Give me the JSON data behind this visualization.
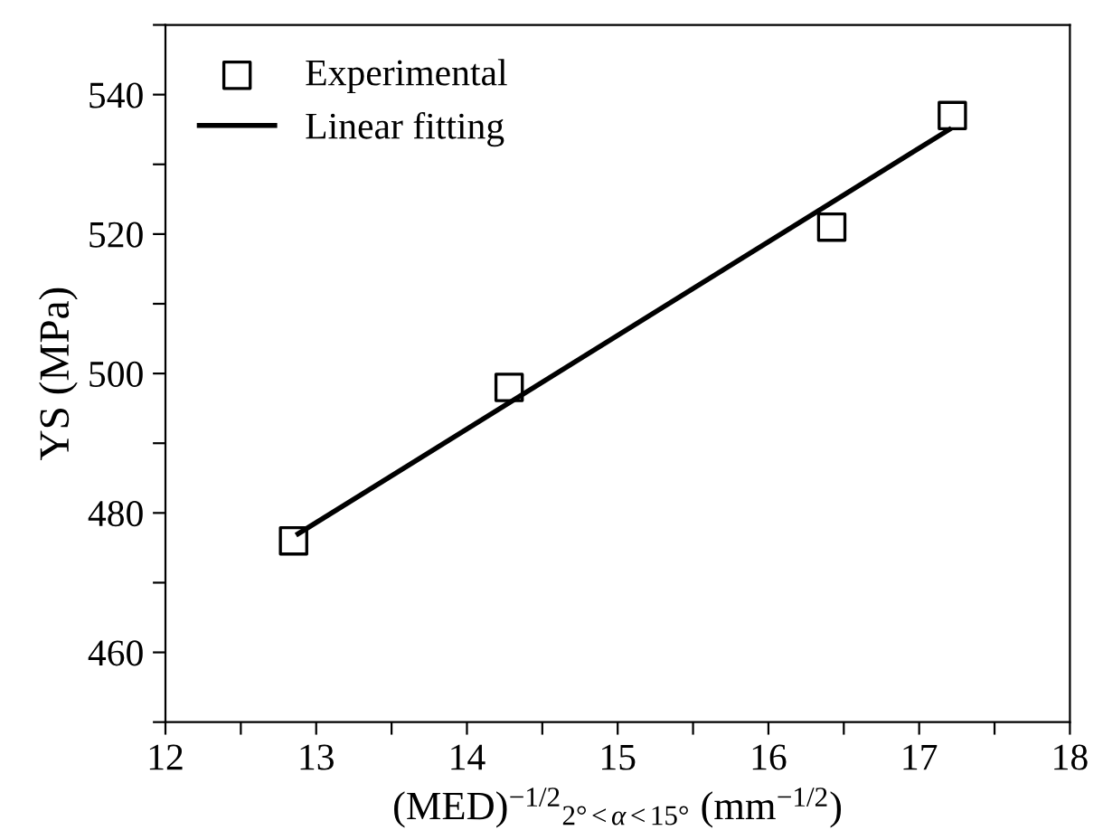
{
  "chart_data": {
    "type": "scatter",
    "xlabel": "(MED)$^{−1/2}$$_{2°<α<15°}$ (mm$^{−1/2}$)",
    "ylabel": "YS (MPa)",
    "xlim": [
      12,
      18
    ],
    "ylim": [
      450,
      550
    ],
    "xticks": [
      12,
      {
        "value": 12.5,
        "label": null
      },
      13,
      {
        "value": 13.5,
        "label": null
      },
      14,
      {
        "value": 14.5,
        "label": null
      },
      15,
      {
        "value": 15.5,
        "label": null
      },
      16,
      {
        "value": 16.5,
        "label": null
      },
      17,
      {
        "value": 17.5,
        "label": null
      },
      18
    ],
    "yticks": [
      {
        "value": 450,
        "label": null
      },
      460,
      {
        "value": 470,
        "label": null
      },
      480,
      {
        "value": 490,
        "label": null
      },
      500,
      {
        "value": 510,
        "label": null
      },
      520,
      {
        "value": 530,
        "label": null
      },
      540,
      {
        "value": 550,
        "label": null
      }
    ],
    "series": [
      {
        "name": "Experimental",
        "color": "#000000",
        "marker": "square",
        "x": [
          12.85,
          14.28,
          16.42,
          17.22
        ],
        "values": [
          476,
          498,
          521,
          537
        ]
      },
      {
        "name": "Linear fitting",
        "type": "line",
        "color": "#000000",
        "marker": "none",
        "line_style": "solid",
        "x": [
          12.88,
          17.2
        ],
        "values": [
          477,
          535
        ]
      }
    ],
    "legend": "top left",
    "grid": false
  }
}
